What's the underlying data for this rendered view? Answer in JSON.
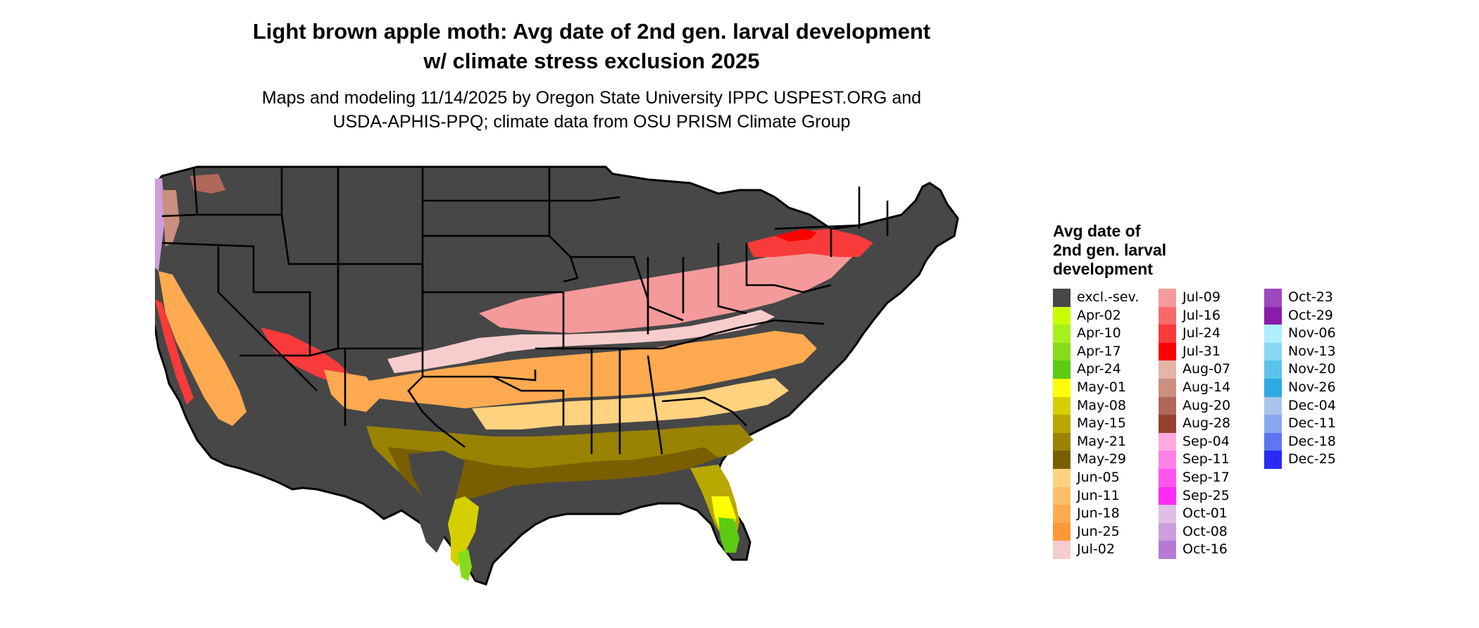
{
  "title": {
    "line1": "Light brown apple moth: Avg date of 2nd gen. larval development",
    "line2": "w/ climate stress exclusion 2025"
  },
  "subtitle": {
    "line1": "Maps and modeling 11/14/2025 by Oregon State University IPPC USPEST.ORG and",
    "line2": "USDA-APHIS-PPQ; climate data from OSU PRISM Climate Group"
  },
  "legend": {
    "title_line1": "Avg date of",
    "title_line2": "2nd gen. larval",
    "title_line3": "development",
    "columns": [
      [
        {
          "label": "excl.-sev.",
          "color": "#474747"
        },
        {
          "label": "Apr-02",
          "color": "#c8ff00"
        },
        {
          "label": "Apr-10",
          "color": "#a6f01e"
        },
        {
          "label": "Apr-17",
          "color": "#86dc1a"
        },
        {
          "label": "Apr-24",
          "color": "#5ccb12"
        },
        {
          "label": "May-01",
          "color": "#ffff00"
        },
        {
          "label": "May-08",
          "color": "#d6cf00"
        },
        {
          "label": "May-15",
          "color": "#b8a800"
        },
        {
          "label": "May-21",
          "color": "#9a8300"
        },
        {
          "label": "May-29",
          "color": "#7a5f00"
        },
        {
          "label": "Jun-05",
          "color": "#ffd27f"
        },
        {
          "label": "Jun-11",
          "color": "#ffbf6a"
        },
        {
          "label": "Jun-18",
          "color": "#ffaa50"
        },
        {
          "label": "Jun-25",
          "color": "#ff9838"
        },
        {
          "label": "Jul-02",
          "color": "#f7cccc"
        }
      ],
      [
        {
          "label": "Jul-09",
          "color": "#f59a9a"
        },
        {
          "label": "Jul-16",
          "color": "#f76a6a"
        },
        {
          "label": "Jul-24",
          "color": "#f93a3a"
        },
        {
          "label": "Jul-31",
          "color": "#ff0000"
        },
        {
          "label": "Aug-07",
          "color": "#e3b5a8"
        },
        {
          "label": "Aug-14",
          "color": "#c98f80"
        },
        {
          "label": "Aug-20",
          "color": "#b06858"
        },
        {
          "label": "Aug-28",
          "color": "#964030"
        },
        {
          "label": "Sep-04",
          "color": "#ffaade"
        },
        {
          "label": "Sep-11",
          "color": "#ff80e6"
        },
        {
          "label": "Sep-17",
          "color": "#ff55ee"
        },
        {
          "label": "Sep-25",
          "color": "#ff2af5"
        },
        {
          "label": "Oct-01",
          "color": "#e0bfe6"
        },
        {
          "label": "Oct-08",
          "color": "#cc9edc"
        },
        {
          "label": "Oct-16",
          "color": "#b67ad2"
        }
      ],
      [
        {
          "label": "Oct-23",
          "color": "#9e48c0"
        },
        {
          "label": "Oct-29",
          "color": "#8a1cac"
        },
        {
          "label": "Nov-06",
          "color": "#aeeeff"
        },
        {
          "label": "Nov-13",
          "color": "#87d8f5"
        },
        {
          "label": "Nov-20",
          "color": "#5cc4ec"
        },
        {
          "label": "Nov-26",
          "color": "#2ea9e2"
        },
        {
          "label": "Dec-04",
          "color": "#a8c4ec"
        },
        {
          "label": "Dec-11",
          "color": "#8aa8f0"
        },
        {
          "label": "Dec-18",
          "color": "#5e74f0"
        },
        {
          "label": "Dec-25",
          "color": "#2a2af5"
        }
      ]
    ]
  },
  "map_colors": {
    "excluded": "#474747",
    "state_border": "#000000"
  }
}
